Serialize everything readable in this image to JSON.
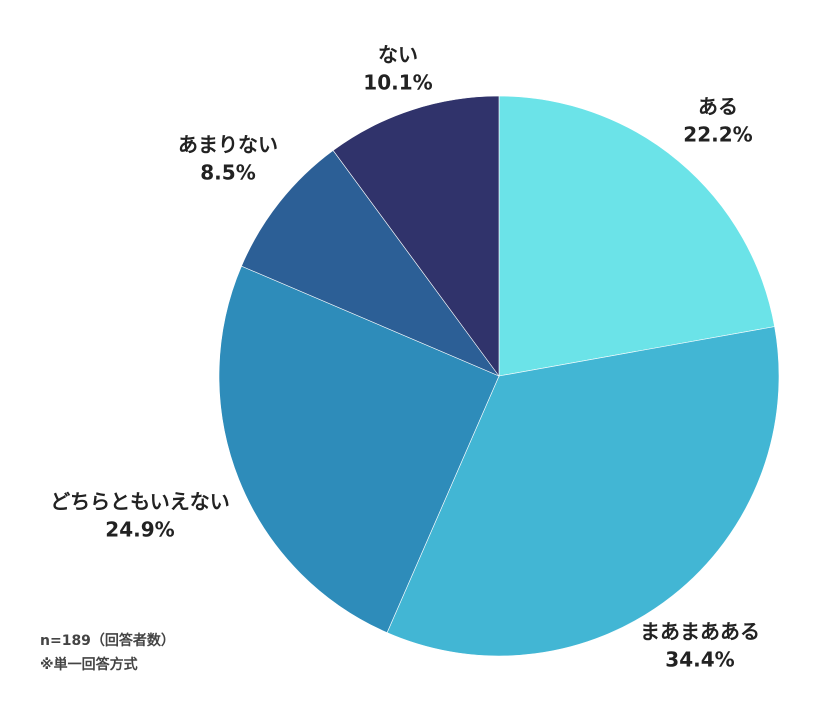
{
  "chart_data": {
    "type": "pie",
    "categories": [
      "ある",
      "まあまあある",
      "どちらともいえない",
      "あまりない",
      "ない"
    ],
    "values": [
      22.2,
      34.4,
      24.9,
      8.5,
      10.1
    ],
    "value_labels": [
      "22.2%",
      "34.4%",
      "24.9%",
      "8.5%",
      "10.1%"
    ],
    "colors": [
      "#6be3e8",
      "#42b6d4",
      "#2e8cba",
      "#2c5f96",
      "#30336b"
    ],
    "notes": [
      "n=189（回答者数）",
      "※単一回答方式"
    ]
  }
}
